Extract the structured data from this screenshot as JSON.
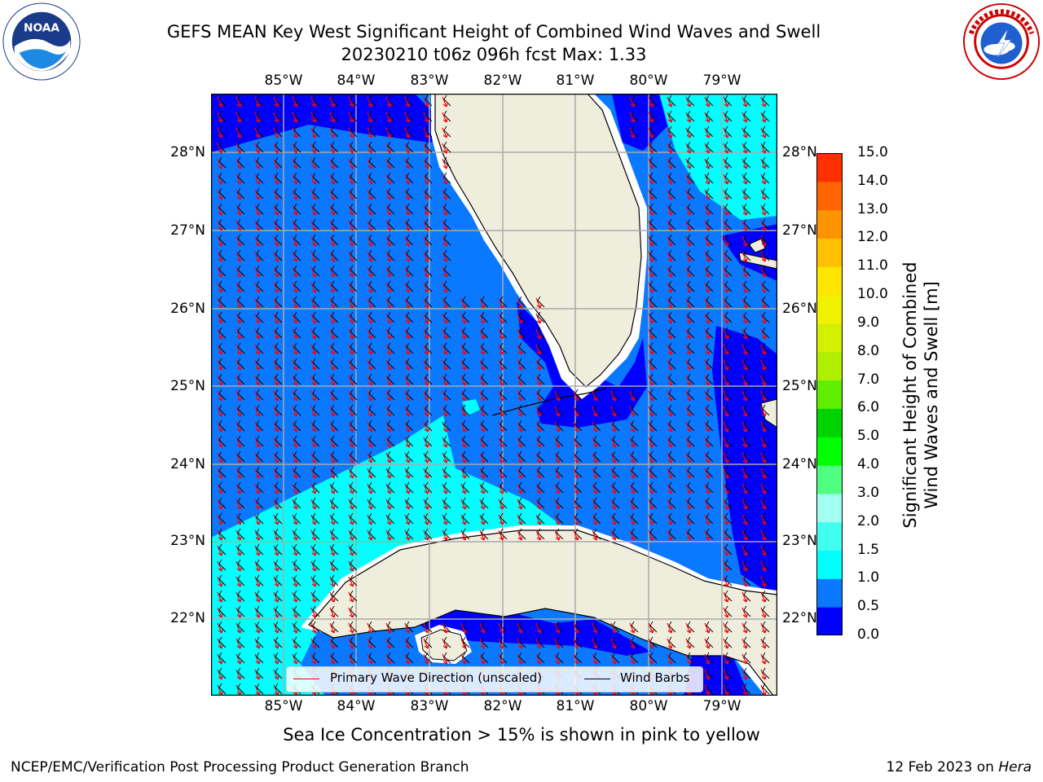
{
  "title": {
    "line1": "GEFS MEAN Key West Significant Height of Combined Wind Waves and Swell",
    "line2": "20230210 t06z 096h fcst   Max: 1.33"
  },
  "logos": {
    "left": {
      "icon": "noaa-logo",
      "text": "NOAA",
      "ring_text": "NATIONAL OCEANIC AND ATMOSPHERIC ADMINISTRATION · U.S. DEPARTMENT OF COMMERCE"
    },
    "right": {
      "icon": "nws-logo",
      "ring_text": "NATIONAL WEATHER SERVICE"
    }
  },
  "map": {
    "lon_labels": [
      "85°W",
      "84°W",
      "83°W",
      "82°W",
      "81°W",
      "80°W",
      "79°W"
    ],
    "lat_labels": [
      "28°N",
      "27°N",
      "26°N",
      "25°N",
      "24°N",
      "23°N",
      "22°N"
    ],
    "extent": {
      "lon": [
        -86.0,
        -78.3
      ],
      "lat": [
        21.0,
        28.75
      ]
    },
    "grid": true,
    "land_color": "#efeedd",
    "coast_color": "#000000",
    "wave_dir_color": "#ff0000",
    "barb_color": "#000000"
  },
  "colorbar": {
    "title_line1": "Significant Height of Combined",
    "title_line2": "Wind Waves and Swell [m]",
    "ticks": [
      "0.0",
      "0.5",
      "1.0",
      "1.5",
      "2.0",
      "3.0",
      "4.0",
      "5.0",
      "6.0",
      "7.0",
      "8.0",
      "9.0",
      "10.0",
      "11.0",
      "12.0",
      "13.0",
      "14.0",
      "15.0"
    ],
    "colors": [
      "#0000ff",
      "#0a78ff",
      "#00ffff",
      "#40ffee",
      "#a0fff0",
      "#50ff80",
      "#00ff00",
      "#00d400",
      "#60ee00",
      "#b0ee00",
      "#d4f000",
      "#f0f000",
      "#ffe600",
      "#ffc000",
      "#ff9400",
      "#ff6400",
      "#ff3000",
      "#ff0000"
    ]
  },
  "legend": {
    "wave_label": "Primary Wave Direction (unscaled)",
    "barb_label": "Wind Barbs"
  },
  "seaice_note": "Sea Ice Concentration > 15% is shown in pink to yellow",
  "footer": {
    "left": "NCEP/EMC/Verification Post Processing Product Generation Branch",
    "right_date": "12 Feb 2023 on ",
    "right_host": "Hera"
  }
}
